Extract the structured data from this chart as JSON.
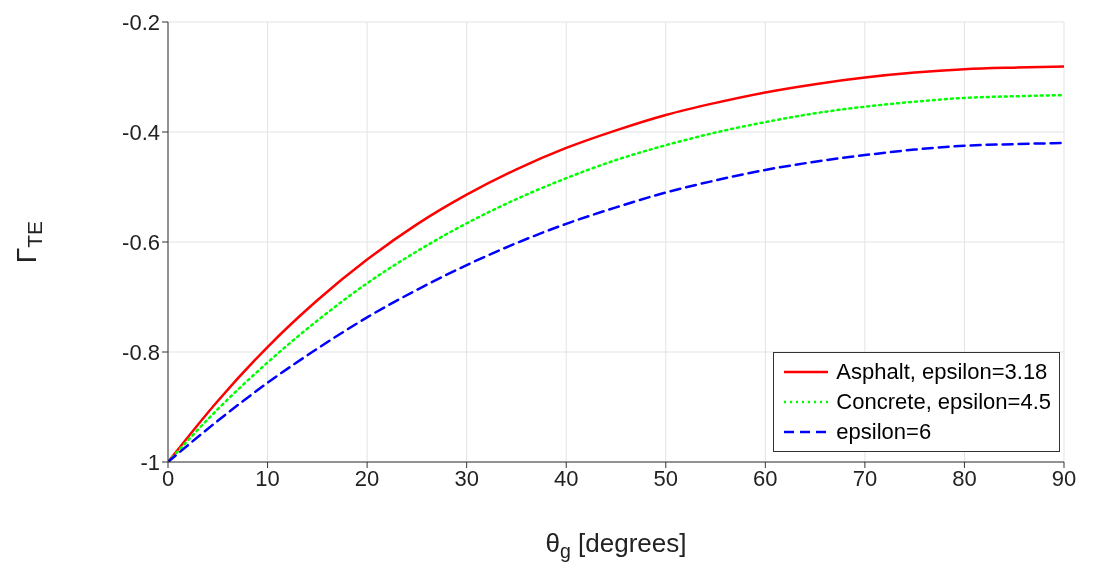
{
  "chart_data": {
    "type": "line",
    "xlabel": "θ$_{g}$ [degrees]",
    "ylabel": "Γ$_{TE}$",
    "x": [
      0,
      5,
      10,
      15,
      20,
      25,
      30,
      35,
      40,
      45,
      50,
      55,
      60,
      65,
      70,
      75,
      80,
      85,
      90
    ],
    "xlim": [
      0,
      90
    ],
    "xticks": [
      0,
      10,
      20,
      30,
      40,
      50,
      60,
      70,
      80,
      90
    ],
    "ylim": [
      -1,
      -0.2
    ],
    "yticks": [
      -1,
      -0.8,
      -0.6,
      -0.4,
      -0.2
    ],
    "grid": true,
    "legend": "bottom right",
    "series": [
      {
        "name": "Asphalt, epsilon=3.18",
        "color": "#ff0000",
        "line_style": "solid",
        "values": [
          -1,
          -0.889,
          -0.791,
          -0.706,
          -0.632,
          -0.568,
          -0.514,
          -0.468,
          -0.429,
          -0.397,
          -0.369,
          -0.347,
          -0.328,
          -0.313,
          -0.301,
          -0.292,
          -0.286,
          -0.283,
          -0.281
        ]
      },
      {
        "name": "Concrete, epsilon=4.5",
        "color": "#00ff00",
        "line_style": "dotted",
        "values": [
          -1,
          -0.904,
          -0.819,
          -0.743,
          -0.675,
          -0.617,
          -0.566,
          -0.522,
          -0.484,
          -0.451,
          -0.424,
          -0.401,
          -0.382,
          -0.366,
          -0.354,
          -0.345,
          -0.338,
          -0.335,
          -0.333
        ]
      },
      {
        "name": "epsilon=6",
        "color": "#0000ff",
        "line_style": "dashed",
        "values": [
          -1,
          -0.925,
          -0.856,
          -0.794,
          -0.737,
          -0.687,
          -0.642,
          -0.602,
          -0.567,
          -0.537,
          -0.51,
          -0.488,
          -0.469,
          -0.454,
          -0.442,
          -0.432,
          -0.425,
          -0.422,
          -0.42
        ]
      }
    ]
  }
}
